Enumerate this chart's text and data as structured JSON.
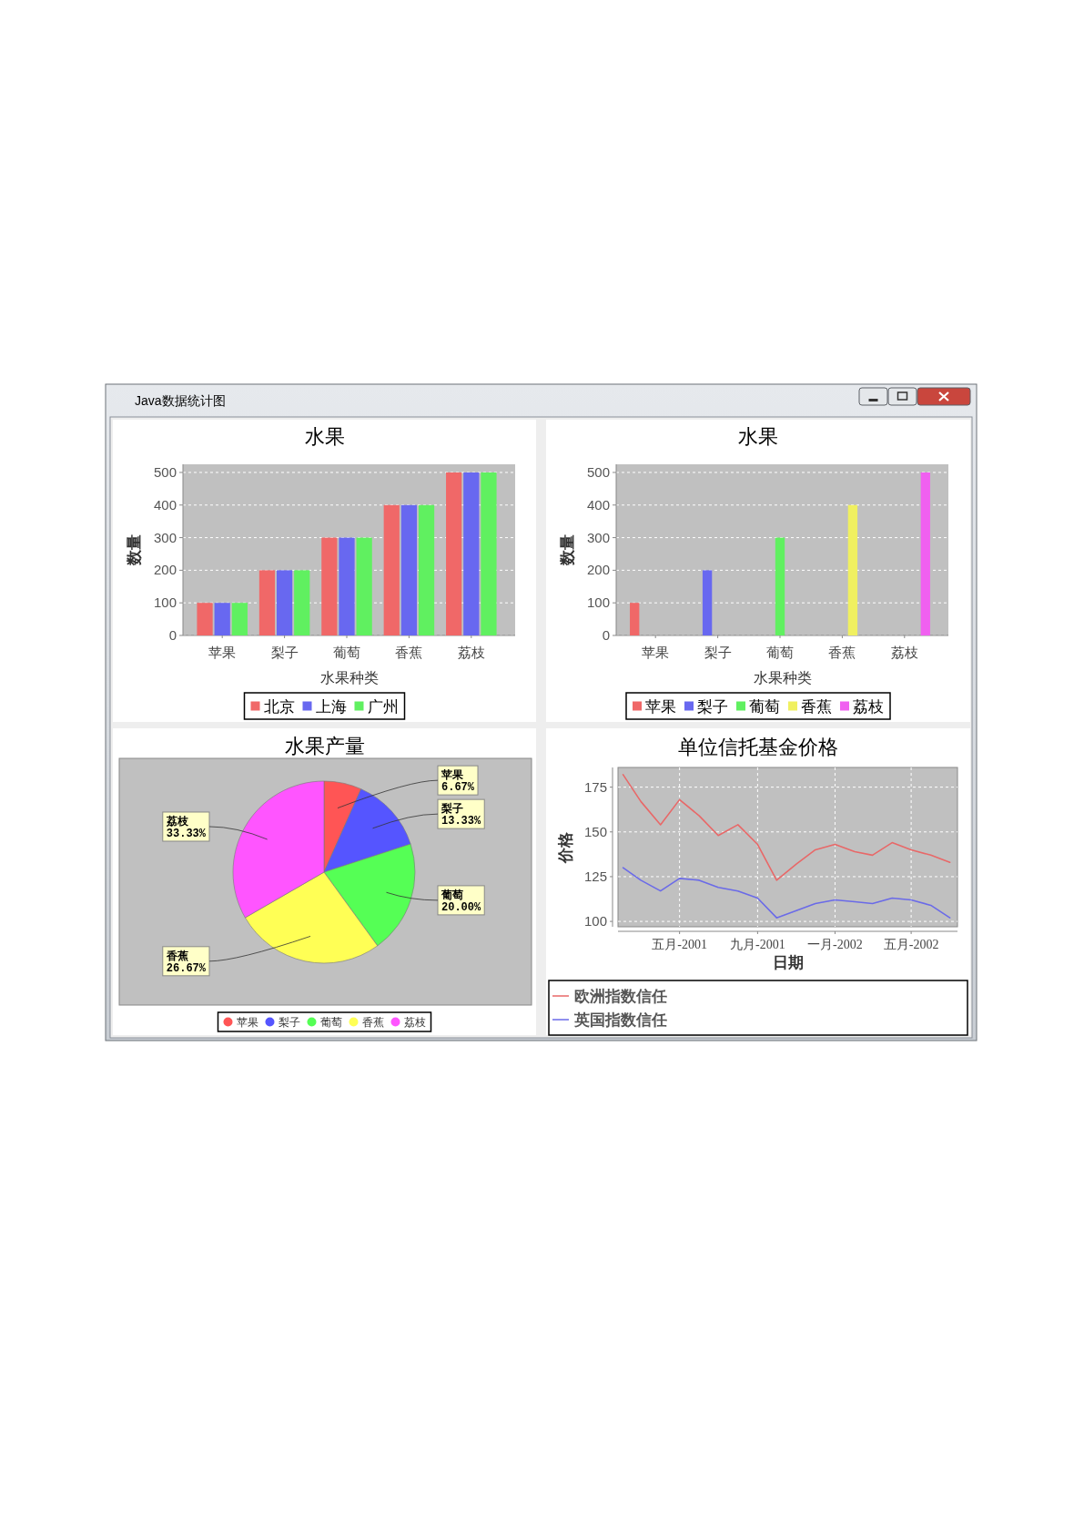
{
  "chart_data": [
    {
      "type": "other",
      "title": "Java数据统计图"
    },
    {
      "type": "bar",
      "title": "水果",
      "xlabel": "水果种类",
      "ylabel": "数量",
      "categories": [
        "苹果",
        "梨子",
        "葡萄",
        "香蕉",
        "荔枝"
      ],
      "series": [
        {
          "name": "北京",
          "color": "#f06868",
          "values": [
            100,
            200,
            300,
            400,
            500
          ]
        },
        {
          "name": "上海",
          "color": "#6868f0",
          "values": [
            100,
            200,
            300,
            400,
            500
          ]
        },
        {
          "name": "广州",
          "color": "#60f060",
          "values": [
            100,
            200,
            300,
            400,
            500
          ]
        }
      ],
      "ylim": [
        0,
        525
      ],
      "yticks": [
        0,
        100,
        200,
        300,
        400,
        500
      ],
      "grid": "y",
      "legend": "bottom"
    },
    {
      "type": "bar",
      "title": "水果",
      "xlabel": "水果种类",
      "ylabel": "数量",
      "categories": [
        "苹果",
        "梨子",
        "葡萄",
        "香蕉",
        "荔枝"
      ],
      "series": [
        {
          "name": "苹果",
          "color": "#f06868",
          "values": [
            100,
            null,
            null,
            null,
            null
          ]
        },
        {
          "name": "梨子",
          "color": "#6868f0",
          "values": [
            null,
            200,
            null,
            null,
            null
          ]
        },
        {
          "name": "葡萄",
          "color": "#60f060",
          "values": [
            null,
            null,
            300,
            null,
            null
          ]
        },
        {
          "name": "香蕉",
          "color": "#f0f060",
          "values": [
            null,
            null,
            null,
            400,
            null
          ]
        },
        {
          "name": "荔枝",
          "color": "#f060f0",
          "values": [
            null,
            null,
            null,
            null,
            500
          ]
        }
      ],
      "ylim": [
        0,
        525
      ],
      "yticks": [
        0,
        100,
        200,
        300,
        400,
        500
      ],
      "grid": "y",
      "legend": "bottom"
    },
    {
      "type": "pie",
      "title": "水果产量",
      "categories": [
        "苹果",
        "梨子",
        "葡萄",
        "香蕉",
        "荔枝"
      ],
      "values": [
        6.67,
        13.33,
        20,
        26.67,
        33.33
      ],
      "colors": [
        "#ff5555",
        "#5555ff",
        "#55ff55",
        "#ffff55",
        "#ff55ff"
      ],
      "value_labels": [
        "6.67%",
        "13.33%",
        "20.00%",
        "26.67%",
        "33.33%"
      ],
      "legend": "bottom"
    },
    {
      "type": "line",
      "title": "单位信托基金价格",
      "xlabel": "日期",
      "ylabel": "价格",
      "x": [
        "2001-02",
        "2001-03",
        "2001-04",
        "2001-05",
        "2001-06",
        "2001-07",
        "2001-08",
        "2001-09",
        "2001-10",
        "2001-11",
        "2001-12",
        "2002-01",
        "2002-02",
        "2002-03",
        "2002-04",
        "2002-05",
        "2002-06",
        "2002-07"
      ],
      "series": [
        {
          "name": "欧洲指数信任",
          "color": "#e86868",
          "values": [
            182,
            167,
            154,
            168,
            159,
            148,
            154,
            143,
            123,
            132,
            140,
            143,
            139,
            137,
            144,
            140,
            137,
            133
          ]
        },
        {
          "name": "英国指数信任",
          "color": "#6a6ae8",
          "values": [
            130,
            123,
            117,
            124,
            123,
            119,
            117,
            113,
            102,
            106,
            110,
            112,
            111,
            110,
            113,
            112,
            109,
            102
          ]
        }
      ],
      "xlim": [
        "2001-01-24",
        "2002-07-13"
      ],
      "xticks": [
        {
          "value": "2001-05",
          "label": "五月-2001"
        },
        {
          "value": "2001-09",
          "label": "九月-2001"
        },
        {
          "value": "2002-01",
          "label": "一月-2002"
        },
        {
          "value": "2002-05",
          "label": "五月-2002"
        }
      ],
      "ylim": [
        97,
        186
      ],
      "yticks": [
        100,
        125,
        150,
        175
      ],
      "grid": true,
      "legend": "bottom"
    }
  ]
}
